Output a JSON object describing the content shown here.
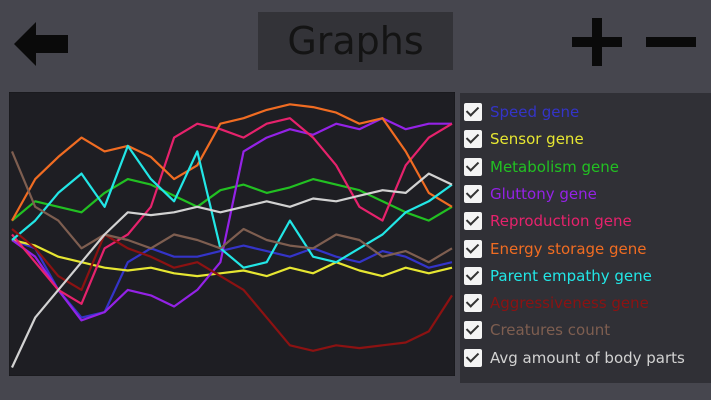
{
  "header": {
    "title": "Graphs"
  },
  "chart_data": {
    "type": "line",
    "ylim": [
      0,
      100
    ],
    "series": [
      {
        "name": "Speed gene",
        "color": "#3434c8",
        "values": [
          48,
          45,
          30,
          20,
          22,
          40,
          45,
          42,
          42,
          44,
          46,
          44,
          42,
          45,
          42,
          40,
          44,
          42,
          38,
          40
        ]
      },
      {
        "name": "Sensor gene",
        "color": "#e6e632",
        "values": [
          48,
          46,
          42,
          40,
          38,
          37,
          38,
          36,
          35,
          36,
          37,
          35,
          38,
          36,
          40,
          37,
          35,
          38,
          36,
          38
        ]
      },
      {
        "name": "Metabolism gene",
        "color": "#22c022",
        "values": [
          55,
          62,
          60,
          58,
          65,
          70,
          68,
          64,
          60,
          66,
          68,
          65,
          67,
          70,
          68,
          66,
          62,
          58,
          55,
          60
        ]
      },
      {
        "name": "Gluttony gene",
        "color": "#9422e6",
        "values": [
          48,
          42,
          30,
          19,
          22,
          30,
          28,
          24,
          30,
          40,
          80,
          85,
          88,
          86,
          90,
          88,
          92,
          88,
          90,
          90
        ]
      },
      {
        "name": "Reproduction gene",
        "color": "#e6226c",
        "values": [
          50,
          40,
          30,
          25,
          45,
          50,
          60,
          85,
          90,
          88,
          85,
          90,
          92,
          85,
          75,
          60,
          55,
          75,
          85,
          90
        ]
      },
      {
        "name": "Energy storage gene",
        "color": "#f06c22",
        "values": [
          55,
          70,
          78,
          85,
          80,
          82,
          78,
          70,
          75,
          90,
          92,
          95,
          97,
          96,
          94,
          90,
          92,
          80,
          65,
          60
        ]
      },
      {
        "name": "Parent empathy gene",
        "color": "#22e6e6",
        "values": [
          48,
          55,
          65,
          72,
          60,
          82,
          70,
          62,
          80,
          45,
          38,
          40,
          55,
          42,
          40,
          45,
          50,
          58,
          62,
          68
        ]
      },
      {
        "name": "Aggressiveness gene",
        "color": "#8c1212",
        "values": [
          52,
          45,
          35,
          30,
          50,
          45,
          42,
          38,
          40,
          35,
          30,
          20,
          10,
          8,
          10,
          9,
          10,
          11,
          15,
          28
        ]
      },
      {
        "name": "Creatures count",
        "color": "#7e5e50",
        "values": [
          80,
          60,
          55,
          45,
          50,
          48,
          45,
          50,
          48,
          45,
          52,
          48,
          46,
          45,
          50,
          48,
          42,
          44,
          40,
          45
        ]
      },
      {
        "name": "Avg amount of body parts",
        "color": "#d2d2d2",
        "values": [
          2,
          20,
          30,
          40,
          50,
          58,
          57,
          58,
          60,
          58,
          60,
          62,
          60,
          63,
          62,
          64,
          66,
          65,
          72,
          68
        ]
      }
    ]
  }
}
